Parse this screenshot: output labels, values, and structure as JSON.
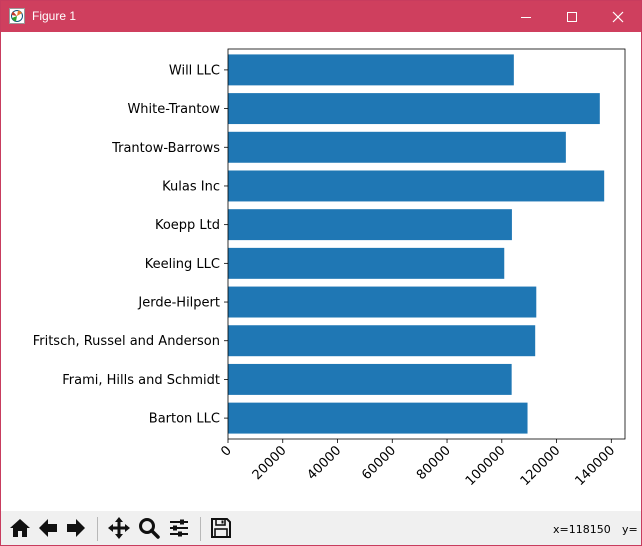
{
  "window": {
    "title": "Figure 1"
  },
  "toolbar": {
    "icons": [
      "home-icon",
      "back-arrow-icon",
      "forward-arrow-icon",
      "pan-icon",
      "zoom-icon",
      "configure-subplots-icon",
      "save-icon"
    ],
    "x_readout": "x=118150",
    "y_readout": "y="
  },
  "colors": {
    "bar": "#1f77b4",
    "titlebar": "#cf3f5e"
  },
  "chart_data": {
    "type": "bar",
    "orientation": "horizontal",
    "title": "",
    "xlabel": "",
    "ylabel": "",
    "xlim": [
      0,
      145000
    ],
    "xticks": [
      0,
      20000,
      40000,
      60000,
      80000,
      100000,
      120000,
      140000
    ],
    "xtick_labels": [
      "0",
      "20000",
      "40000",
      "60000",
      "80000",
      "100000",
      "120000",
      "140000"
    ],
    "xtick_rotation": 45,
    "grid": false,
    "categories": [
      "Barton LLC",
      "Frami, Hills and Schmidt",
      "Fritsch, Russel and Anderson",
      "Jerde-Hilpert",
      "Keeling LLC",
      "Koepp Ltd",
      "Kulas Inc",
      "Trantow-Barrows",
      "White-Trantow",
      "Will LLC"
    ],
    "values": [
      109400,
      103600,
      112200,
      112600,
      100900,
      103700,
      137400,
      123400,
      135800,
      104400
    ]
  }
}
